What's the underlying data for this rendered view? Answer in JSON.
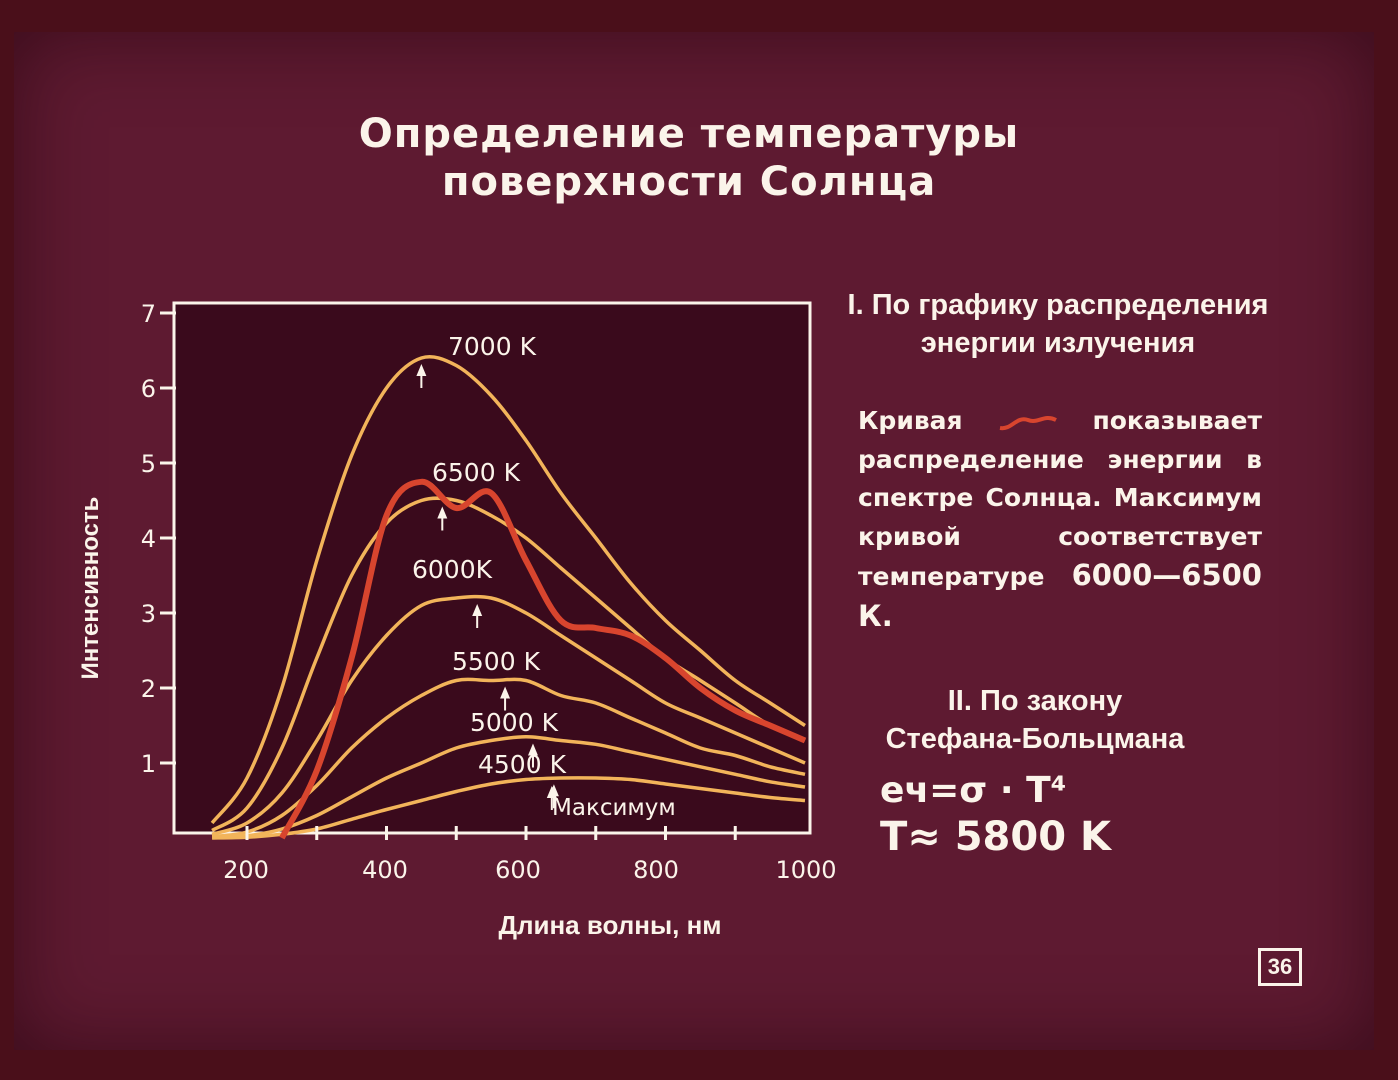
{
  "title_line1": "Определение температуры",
  "title_line2": "поверхности Солнца",
  "section1": {
    "heading_line1": "I. По графику распределения",
    "heading_line2": "энергии излучения"
  },
  "description": {
    "before_swatch": "Кривая",
    "after_swatch": "показывает распределение энергии в спектре Солнца. Максимум кривой соответствует температуре",
    "value": "6000—6500 К."
  },
  "section2": {
    "heading_line1": "II. По закону",
    "heading_line2": "Стефана-Больцмана"
  },
  "formula": {
    "line1": "eч=σ · T⁴",
    "line2": "T≈ 5800 K"
  },
  "page_number": "36",
  "colors": {
    "background": "#5e1a31",
    "plot_background": "#3a0a1c",
    "curve": "#f2b45a",
    "solar_curve": "#d8452e",
    "text": "#fbf4ea"
  },
  "chart_data": {
    "type": "line",
    "xlabel": "Длина волны, нм",
    "ylabel": "Интенсивность",
    "x_ticks": [
      "200",
      "400",
      "600",
      "800",
      "1000"
    ],
    "y_ticks": [
      "1",
      "2",
      "3",
      "4",
      "5",
      "6",
      "7"
    ],
    "xlim": [
      100,
      1000
    ],
    "ylim": [
      0,
      7.2
    ],
    "grid": false,
    "x": [
      150,
      200,
      250,
      300,
      350,
      400,
      450,
      500,
      550,
      600,
      650,
      700,
      750,
      800,
      850,
      900,
      950,
      1000
    ],
    "series": [
      {
        "name": "7000 K",
        "peak_x": 450,
        "values": [
          0.2,
          0.8,
          2.0,
          3.7,
          5.1,
          6.0,
          6.4,
          6.3,
          5.9,
          5.3,
          4.6,
          4.0,
          3.4,
          2.9,
          2.5,
          2.1,
          1.8,
          1.5
        ]
      },
      {
        "name": "6500 K",
        "peak_x": 480,
        "values": [
          0.1,
          0.4,
          1.2,
          2.4,
          3.5,
          4.2,
          4.5,
          4.5,
          4.3,
          4.0,
          3.6,
          3.2,
          2.8,
          2.4,
          2.1,
          1.8,
          1.5,
          1.3
        ]
      },
      {
        "name": "6000K",
        "peak_x": 530,
        "values": [
          0.05,
          0.2,
          0.6,
          1.3,
          2.1,
          2.7,
          3.1,
          3.2,
          3.2,
          3.0,
          2.7,
          2.4,
          2.1,
          1.8,
          1.6,
          1.4,
          1.2,
          1.0
        ]
      },
      {
        "name": "5500 K",
        "peak_x": 570,
        "values": [
          0.02,
          0.08,
          0.3,
          0.7,
          1.2,
          1.6,
          1.9,
          2.1,
          2.1,
          2.1,
          1.9,
          1.8,
          1.6,
          1.4,
          1.2,
          1.1,
          0.95,
          0.85
        ]
      },
      {
        "name": "5000 K",
        "peak_x": 610,
        "values": [
          0.01,
          0.03,
          0.12,
          0.3,
          0.55,
          0.8,
          1.0,
          1.2,
          1.3,
          1.35,
          1.3,
          1.25,
          1.15,
          1.05,
          0.95,
          0.85,
          0.75,
          0.68
        ]
      },
      {
        "name": "4500 K",
        "peak_x": 640,
        "values": [
          0.0,
          0.01,
          0.05,
          0.12,
          0.25,
          0.38,
          0.5,
          0.62,
          0.72,
          0.78,
          0.8,
          0.8,
          0.78,
          0.72,
          0.66,
          0.6,
          0.54,
          0.5
        ]
      },
      {
        "name": "",
        "solar": true,
        "values": [
          null,
          null,
          0.0,
          0.9,
          2.4,
          4.3,
          4.75,
          4.4,
          4.6,
          3.7,
          2.9,
          2.8,
          2.7,
          2.4,
          2.0,
          1.7,
          1.5,
          1.3
        ]
      }
    ],
    "annotations": [
      "Максимум"
    ]
  }
}
